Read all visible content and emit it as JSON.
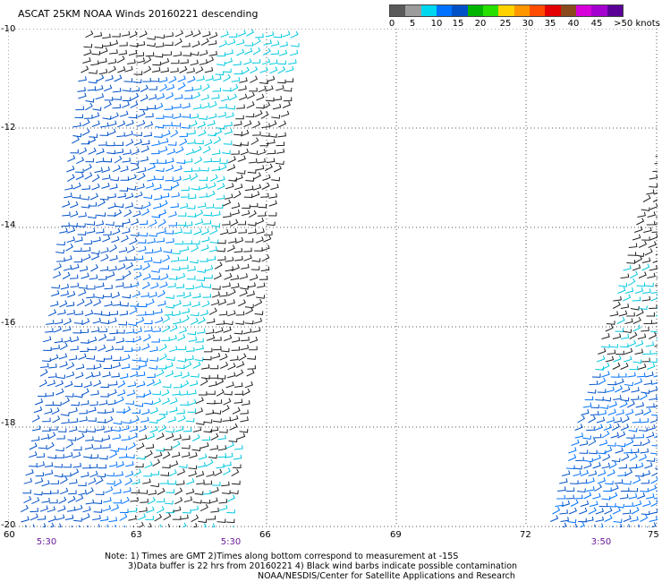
{
  "title": "ASCAT 25KM NOAA Winds 20160221 descending",
  "colorbar": {
    "colors": [
      "#5a5a5a",
      "#9c9c9c",
      "#00d8f0",
      "#0072ff",
      "#0050c8",
      "#00b400",
      "#28e000",
      "#ffd200",
      "#ff9600",
      "#ff4c00",
      "#e40000",
      "#8b4a1e",
      "#d800d8",
      "#a400d0",
      "#5a0096"
    ],
    "labels": [
      "0",
      "5",
      "10",
      "15",
      "20",
      "25",
      "30",
      "35",
      "40",
      "45",
      ">50 knots"
    ]
  },
  "y_labels": [
    "-10",
    "-12",
    "-14",
    "-16",
    "-18",
    "-20"
  ],
  "x_labels": [
    "60",
    "63",
    "66",
    "69",
    "72",
    "75"
  ],
  "time_labels": [
    "5:30",
    "5:30",
    "3:50"
  ],
  "notes": [
    "Note: 1) Times are GMT 2)Times along bottom correspond to measurement at -15S",
    "3)Data buffer is 22 hrs from 20160221 4) Black wind barbs indicate possible contamination",
    "NOAA/NESDIS/Center for Satellite Applications and Research"
  ]
}
